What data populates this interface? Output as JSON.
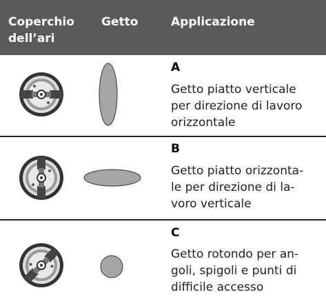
{
  "table": {
    "header": [
      [
        "Coperchio",
        "dell’ari"
      ],
      [
        "Getto"
      ],
      [
        "Applicazione"
      ]
    ],
    "rows": [
      {
        "label": "A",
        "lines": [
          "Getto piatto verticale",
          "per direzione di lavoro",
          "orizzontale"
        ]
      },
      {
        "label": "B",
        "lines": [
          "Getto piatto orizzonta-",
          "le per direzione di la-",
          "voro verticale"
        ]
      },
      {
        "label": "C",
        "lines": [
          "Getto rotondo per an-",
          "goli, spigoli e punti di",
          "difficile accesso"
        ]
      }
    ]
  }
}
